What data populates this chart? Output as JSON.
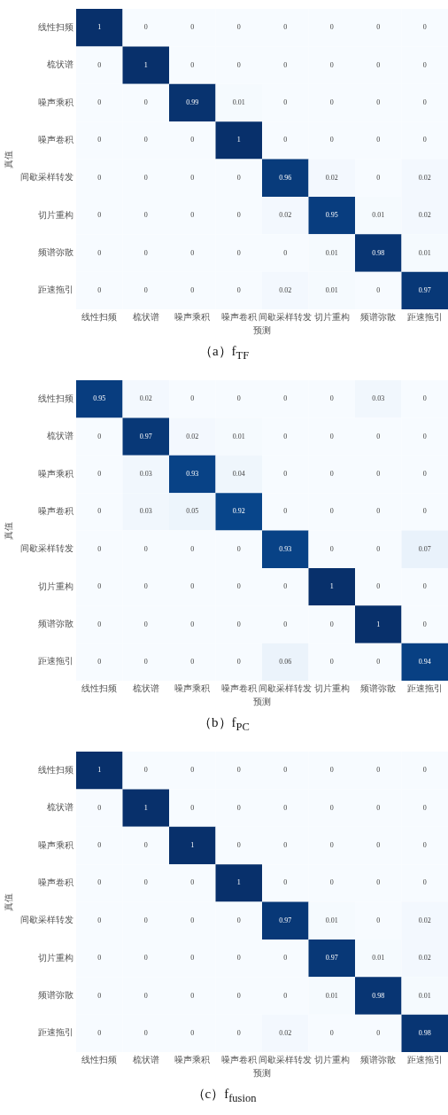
{
  "chart_data": [
    {
      "type": "heatmap",
      "title": "（a）f$_{TF}$",
      "xlabel": "预测",
      "ylabel": "真值",
      "grid": false,
      "data_labels": true,
      "categories": [
        "线性扫频",
        "梳状谱",
        "噪声乘积",
        "噪声卷积",
        "间歇采样转发",
        "切片重构",
        "频谱弥散",
        "距速拖引"
      ],
      "y_categories": [
        "线性扫频",
        "梳状谱",
        "噪声乘积",
        "噪声卷积",
        "间歇采样转发",
        "切片重构",
        "频谱弥散",
        "距速拖引"
      ],
      "cells": [
        [
          1,
          0,
          0,
          0,
          0,
          0,
          0,
          0
        ],
        [
          0,
          1,
          0,
          0,
          0,
          0,
          0,
          0
        ],
        [
          0,
          0,
          0.99,
          0.01,
          0,
          0,
          0,
          0
        ],
        [
          0,
          0,
          0,
          1,
          0,
          0,
          0,
          0
        ],
        [
          0,
          0,
          0,
          0,
          0.96,
          0.02,
          0,
          0.02
        ],
        [
          0,
          0,
          0,
          0,
          0.02,
          0.95,
          0.01,
          0.02
        ],
        [
          0,
          0,
          0,
          0,
          0,
          0.01,
          0.98,
          0.01
        ],
        [
          0,
          0,
          0,
          0,
          0.02,
          0.01,
          0,
          0.97
        ]
      ]
    },
    {
      "type": "heatmap",
      "title": "（b）f$_{PC}$",
      "xlabel": "预测",
      "ylabel": "真值",
      "grid": false,
      "data_labels": true,
      "categories": [
        "线性扫频",
        "梳状谱",
        "噪声乘积",
        "噪声卷积",
        "间歇采样转发",
        "切片重构",
        "频谱弥散",
        "距速拖引"
      ],
      "y_categories": [
        "线性扫频",
        "梳状谱",
        "噪声乘积",
        "噪声卷积",
        "间歇采样转发",
        "切片重构",
        "频谱弥散",
        "距速拖引"
      ],
      "cells": [
        [
          0.95,
          0.02,
          0,
          0,
          0,
          0,
          0.03,
          0
        ],
        [
          0,
          0.97,
          0.02,
          0.01,
          0,
          0,
          0,
          0
        ],
        [
          0,
          0.03,
          0.93,
          0.04,
          0,
          0,
          0,
          0
        ],
        [
          0,
          0.03,
          0.05,
          0.92,
          0,
          0,
          0,
          0
        ],
        [
          0,
          0,
          0,
          0,
          0.93,
          0,
          0,
          0.07
        ],
        [
          0,
          0,
          0,
          0,
          0,
          1,
          0,
          0
        ],
        [
          0,
          0,
          0,
          0,
          0,
          0,
          1,
          0
        ],
        [
          0,
          0,
          0,
          0,
          0.06,
          0,
          0,
          0.94
        ]
      ]
    },
    {
      "type": "heatmap",
      "title": "（c）f$_{fusion}$",
      "xlabel": "预测",
      "ylabel": "真值",
      "grid": false,
      "data_labels": true,
      "categories": [
        "线性扫频",
        "梳状谱",
        "噪声乘积",
        "噪声卷积",
        "间歇采样转发",
        "切片重构",
        "频谱弥散",
        "距速拖引"
      ],
      "y_categories": [
        "线性扫频",
        "梳状谱",
        "噪声乘积",
        "噪声卷积",
        "间歇采样转发",
        "切片重构",
        "频谱弥散",
        "距速拖引"
      ],
      "cells": [
        [
          1,
          0,
          0,
          0,
          0,
          0,
          0,
          0
        ],
        [
          0,
          1,
          0,
          0,
          0,
          0,
          0,
          0
        ],
        [
          0,
          0,
          1,
          0,
          0,
          0,
          0,
          0
        ],
        [
          0,
          0,
          0,
          1,
          0,
          0,
          0,
          0
        ],
        [
          0,
          0,
          0,
          0,
          0.97,
          0.01,
          0,
          0.02
        ],
        [
          0,
          0,
          0,
          0,
          0,
          0.97,
          0.01,
          0.02
        ],
        [
          0,
          0,
          0,
          0,
          0,
          0.01,
          0.98,
          0.01
        ],
        [
          0,
          0,
          0,
          0,
          0.02,
          0,
          0,
          0.98
        ]
      ]
    }
  ]
}
